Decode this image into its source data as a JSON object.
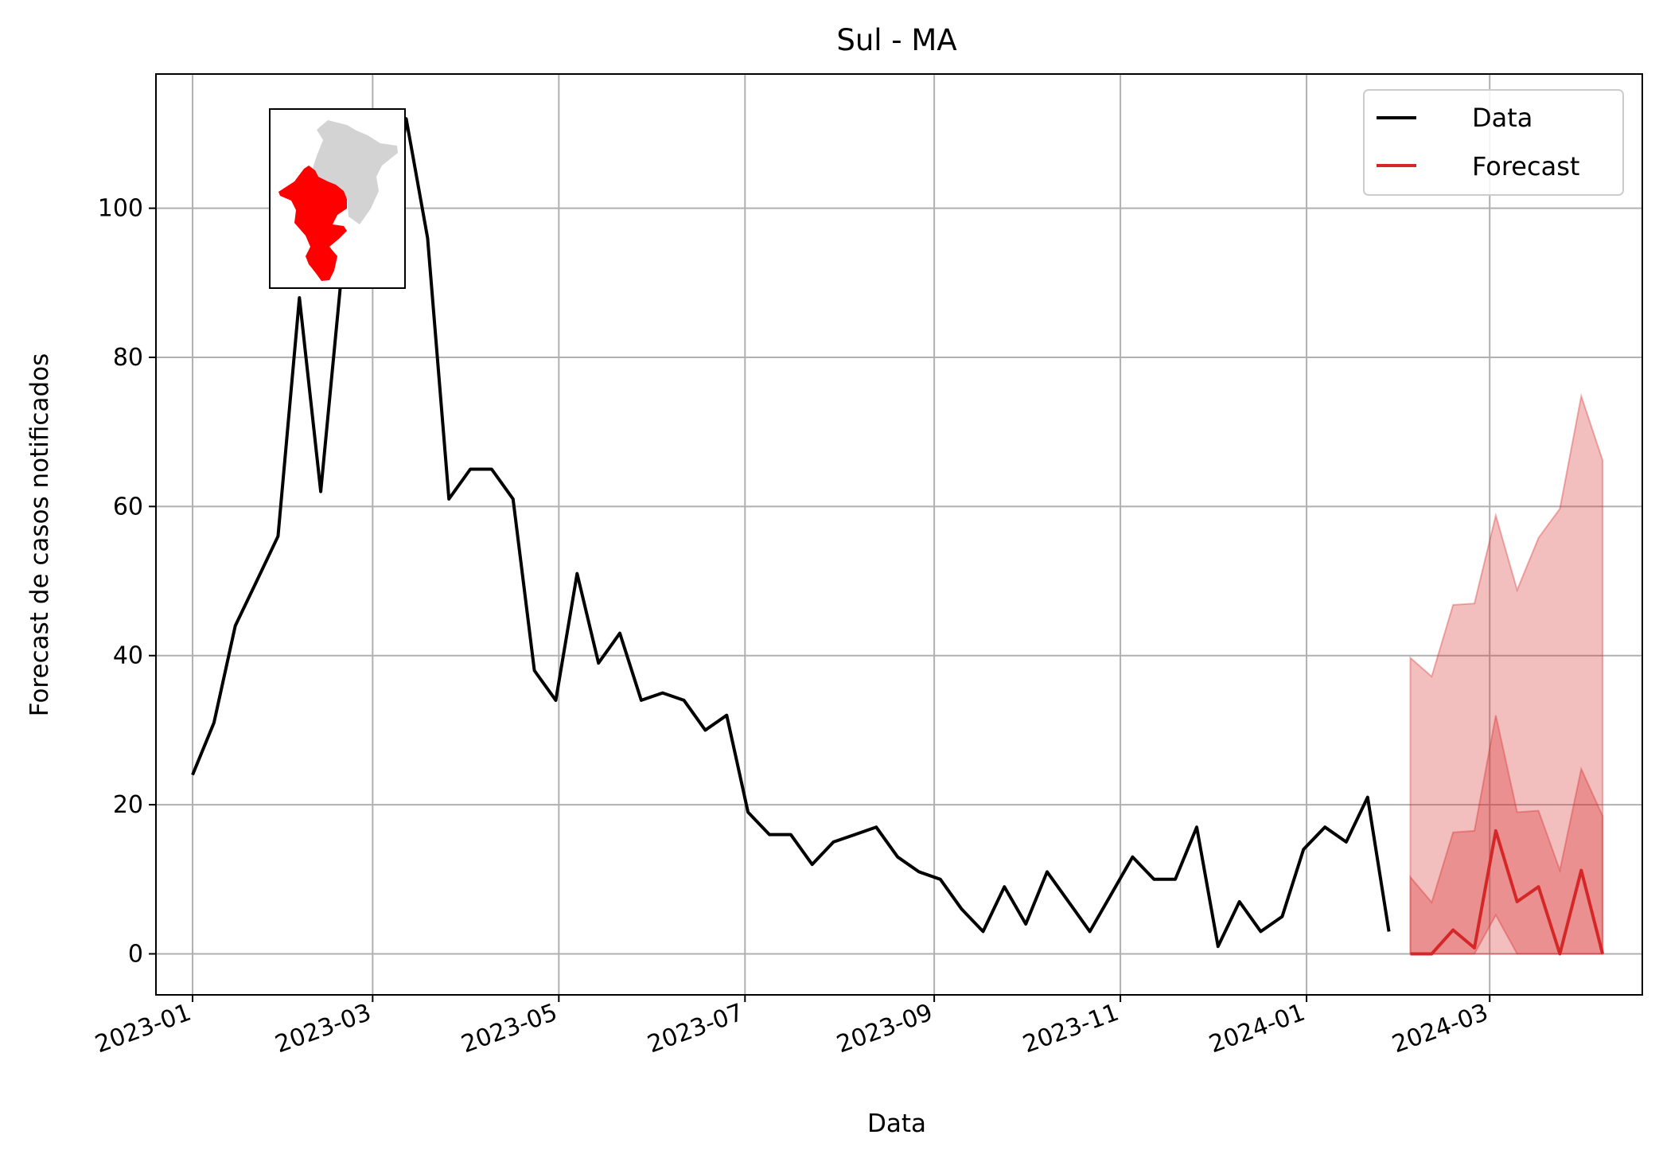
{
  "chart_data": {
    "type": "line",
    "title": "Sul - MA",
    "xlabel": "Data",
    "ylabel": "Forecast de casos notificados",
    "xlim": [
      "2022-12-20",
      "2024-04-20"
    ],
    "ylim": [
      -5.5,
      118
    ],
    "grid": true,
    "legend_position": "upper right",
    "x_ticks": [
      {
        "date": "2023-01-01",
        "label": "2023-01"
      },
      {
        "date": "2023-03-01",
        "label": "2023-03"
      },
      {
        "date": "2023-05-01",
        "label": "2023-05"
      },
      {
        "date": "2023-07-01",
        "label": "2023-07"
      },
      {
        "date": "2023-09-01",
        "label": "2023-09"
      },
      {
        "date": "2023-11-01",
        "label": "2023-11"
      },
      {
        "date": "2024-01-01",
        "label": "2024-01"
      },
      {
        "date": "2024-03-01",
        "label": "2024-03"
      }
    ],
    "y_ticks": [
      0,
      20,
      40,
      60,
      80,
      100
    ],
    "colors": {
      "data": "#000000",
      "forecast": "#d62728",
      "band": "#d62728"
    },
    "series": [
      {
        "name": "Data",
        "x": [
          "2023-01-01",
          "2023-01-08",
          "2023-01-15",
          "2023-01-22",
          "2023-01-29",
          "2023-02-05",
          "2023-02-12",
          "2023-02-19",
          "2023-02-26",
          "2023-03-05",
          "2023-03-12",
          "2023-03-19",
          "2023-03-26",
          "2023-04-02",
          "2023-04-09",
          "2023-04-16",
          "2023-04-23",
          "2023-04-30",
          "2023-05-07",
          "2023-05-14",
          "2023-05-21",
          "2023-05-28",
          "2023-06-04",
          "2023-06-11",
          "2023-06-18",
          "2023-06-25",
          "2023-07-02",
          "2023-07-09",
          "2023-07-16",
          "2023-07-23",
          "2023-07-30",
          "2023-08-06",
          "2023-08-13",
          "2023-08-20",
          "2023-08-27",
          "2023-09-03",
          "2023-09-10",
          "2023-09-17",
          "2023-09-24",
          "2023-10-01",
          "2023-10-08",
          "2023-10-15",
          "2023-10-22",
          "2023-10-29",
          "2023-11-05",
          "2023-11-12",
          "2023-11-19",
          "2023-11-26",
          "2023-12-03",
          "2023-12-10",
          "2023-12-17",
          "2023-12-24",
          "2023-12-31",
          "2024-01-07",
          "2024-01-14",
          "2024-01-21",
          "2024-01-28"
        ],
        "values": [
          24,
          31,
          44,
          50,
          56,
          88,
          62,
          92,
          94,
          90,
          112,
          96,
          61,
          65,
          65,
          61,
          38,
          34,
          51,
          39,
          43,
          34,
          35,
          34,
          30,
          32,
          19,
          16,
          16,
          12,
          15,
          16,
          17,
          13,
          11,
          10,
          6,
          3,
          9,
          4,
          11,
          7,
          3,
          8,
          13,
          10,
          10,
          17,
          1,
          7,
          3,
          5,
          14,
          17,
          15,
          21,
          3
        ]
      },
      {
        "name": "Forecast",
        "x": [
          "2024-02-04",
          "2024-02-11",
          "2024-02-18",
          "2024-02-25",
          "2024-03-03",
          "2024-03-10",
          "2024-03-17",
          "2024-03-24",
          "2024-03-31",
          "2024-04-07"
        ],
        "values": [
          0,
          0,
          3.2,
          0.8,
          16.5,
          7,
          9,
          0,
          11.2,
          0
        ]
      }
    ],
    "bands": [
      {
        "level": "outer",
        "x": [
          "2024-02-04",
          "2024-02-11",
          "2024-02-18",
          "2024-02-25",
          "2024-03-03",
          "2024-03-10",
          "2024-03-17",
          "2024-03-24",
          "2024-03-31",
          "2024-04-07"
        ],
        "lower": [
          0,
          0,
          0,
          0,
          0,
          0,
          0,
          0,
          0,
          0
        ],
        "upper": [
          39.7,
          37.2,
          46.8,
          47,
          58.8,
          48.8,
          55.8,
          59.7,
          74.8,
          66.2
        ]
      },
      {
        "level": "inner",
        "x": [
          "2024-02-04",
          "2024-02-11",
          "2024-02-18",
          "2024-02-25",
          "2024-03-03",
          "2024-03-10",
          "2024-03-17",
          "2024-03-24",
          "2024-03-31",
          "2024-04-07"
        ],
        "lower": [
          0,
          0,
          0,
          0,
          5.2,
          0,
          0,
          0,
          0,
          0
        ],
        "upper": [
          10.3,
          6.9,
          16.3,
          16.5,
          32,
          19,
          19.2,
          11.2,
          24.8,
          18.5
        ]
      }
    ],
    "inset_map": {
      "description_icon": "maranhao-state-map-icon",
      "base_color": "#d3d3d3",
      "highlight_color": "#ff0000"
    }
  }
}
